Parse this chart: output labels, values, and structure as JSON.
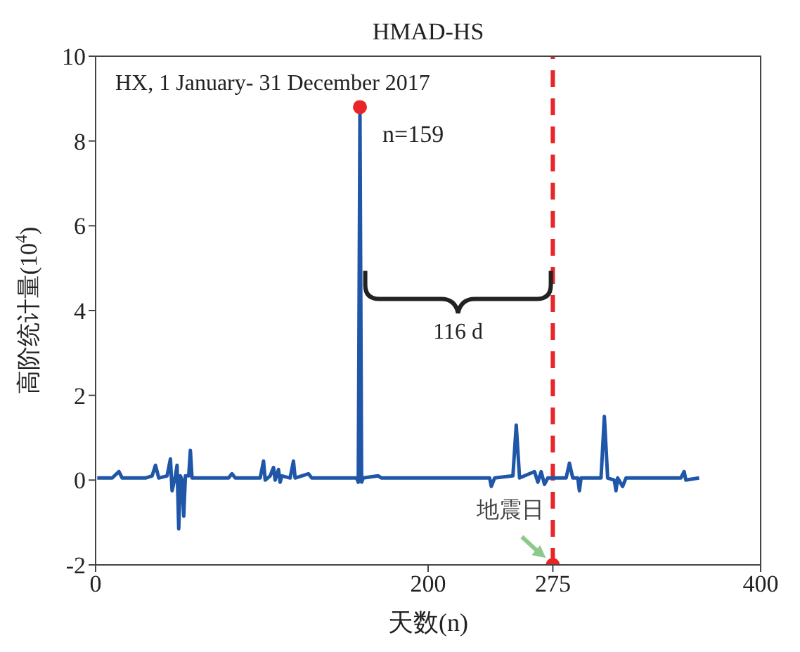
{
  "chart_data": {
    "type": "line",
    "title": "HMAD-HS",
    "xlabel": "天数(n)",
    "ylabel": "高阶统计量(10$^{4}$)",
    "xlim": [
      0,
      400
    ],
    "xticks": [
      0,
      200,
      275,
      400
    ],
    "ylim": [
      -2,
      10
    ],
    "yticks": [
      -2,
      0,
      2,
      4,
      6,
      8,
      10
    ],
    "grid": false,
    "annotations": [
      "HX, 1 January- 31 December 2017",
      {
        "text": "n=159",
        "x": 159,
        "y": 8.7
      },
      "116 d"
    ],
    "ref_lines": [
      {
        "axis": "x",
        "value": 275,
        "label": "地震日",
        "color": "#e8262a",
        "line_style": "dashed"
      }
    ],
    "series": [
      {
        "color": "#1f56a8",
        "marker": "none",
        "line_style": "solid",
        "x": [
          1,
          10,
          14,
          16,
          30,
          34,
          36,
          38,
          43,
          45,
          46,
          48,
          49,
          50,
          51,
          52,
          53,
          54,
          56,
          57,
          58,
          80,
          82,
          84,
          99,
          101,
          102,
          105,
          107,
          108,
          110,
          111,
          112,
          117,
          119,
          120,
          128,
          130,
          157,
          158,
          159,
          160,
          161,
          170,
          172,
          237,
          238,
          240,
          251,
          253,
          255,
          264,
          266,
          268,
          270,
          272,
          283,
          285,
          287,
          290,
          291,
          292,
          304,
          306,
          308,
          312,
          313,
          314,
          317,
          319,
          352,
          354,
          355,
          363
        ],
        "values": [
          0.05,
          0.05,
          0.2,
          0.05,
          0.05,
          0.1,
          0.35,
          0.05,
          0.1,
          0.5,
          -0.25,
          0.1,
          0.35,
          -1.15,
          0.1,
          0.0,
          -0.85,
          0.1,
          0.1,
          0.7,
          0.05,
          0.05,
          0.15,
          0.05,
          0.05,
          0.45,
          0.0,
          0.1,
          0.3,
          0.0,
          0.25,
          -0.05,
          0.1,
          0.05,
          0.45,
          0.05,
          0.15,
          0.05,
          0.05,
          -0.05,
          8.7,
          -0.05,
          0.05,
          0.1,
          0.05,
          0.05,
          -0.15,
          0.05,
          0.1,
          1.3,
          0.05,
          0.2,
          -0.05,
          0.2,
          -0.1,
          0.05,
          0.05,
          0.4,
          0.05,
          0.05,
          -0.25,
          0.05,
          0.05,
          1.5,
          0.05,
          0.0,
          -0.25,
          0.05,
          -0.15,
          0.05,
          0.05,
          0.2,
          0.0,
          0.05
        ]
      },
      {
        "type": "scatter",
        "color": "#e8262a",
        "marker": "circle",
        "x": [
          159,
          275
        ],
        "values": [
          8.8,
          -2
        ]
      }
    ]
  }
}
